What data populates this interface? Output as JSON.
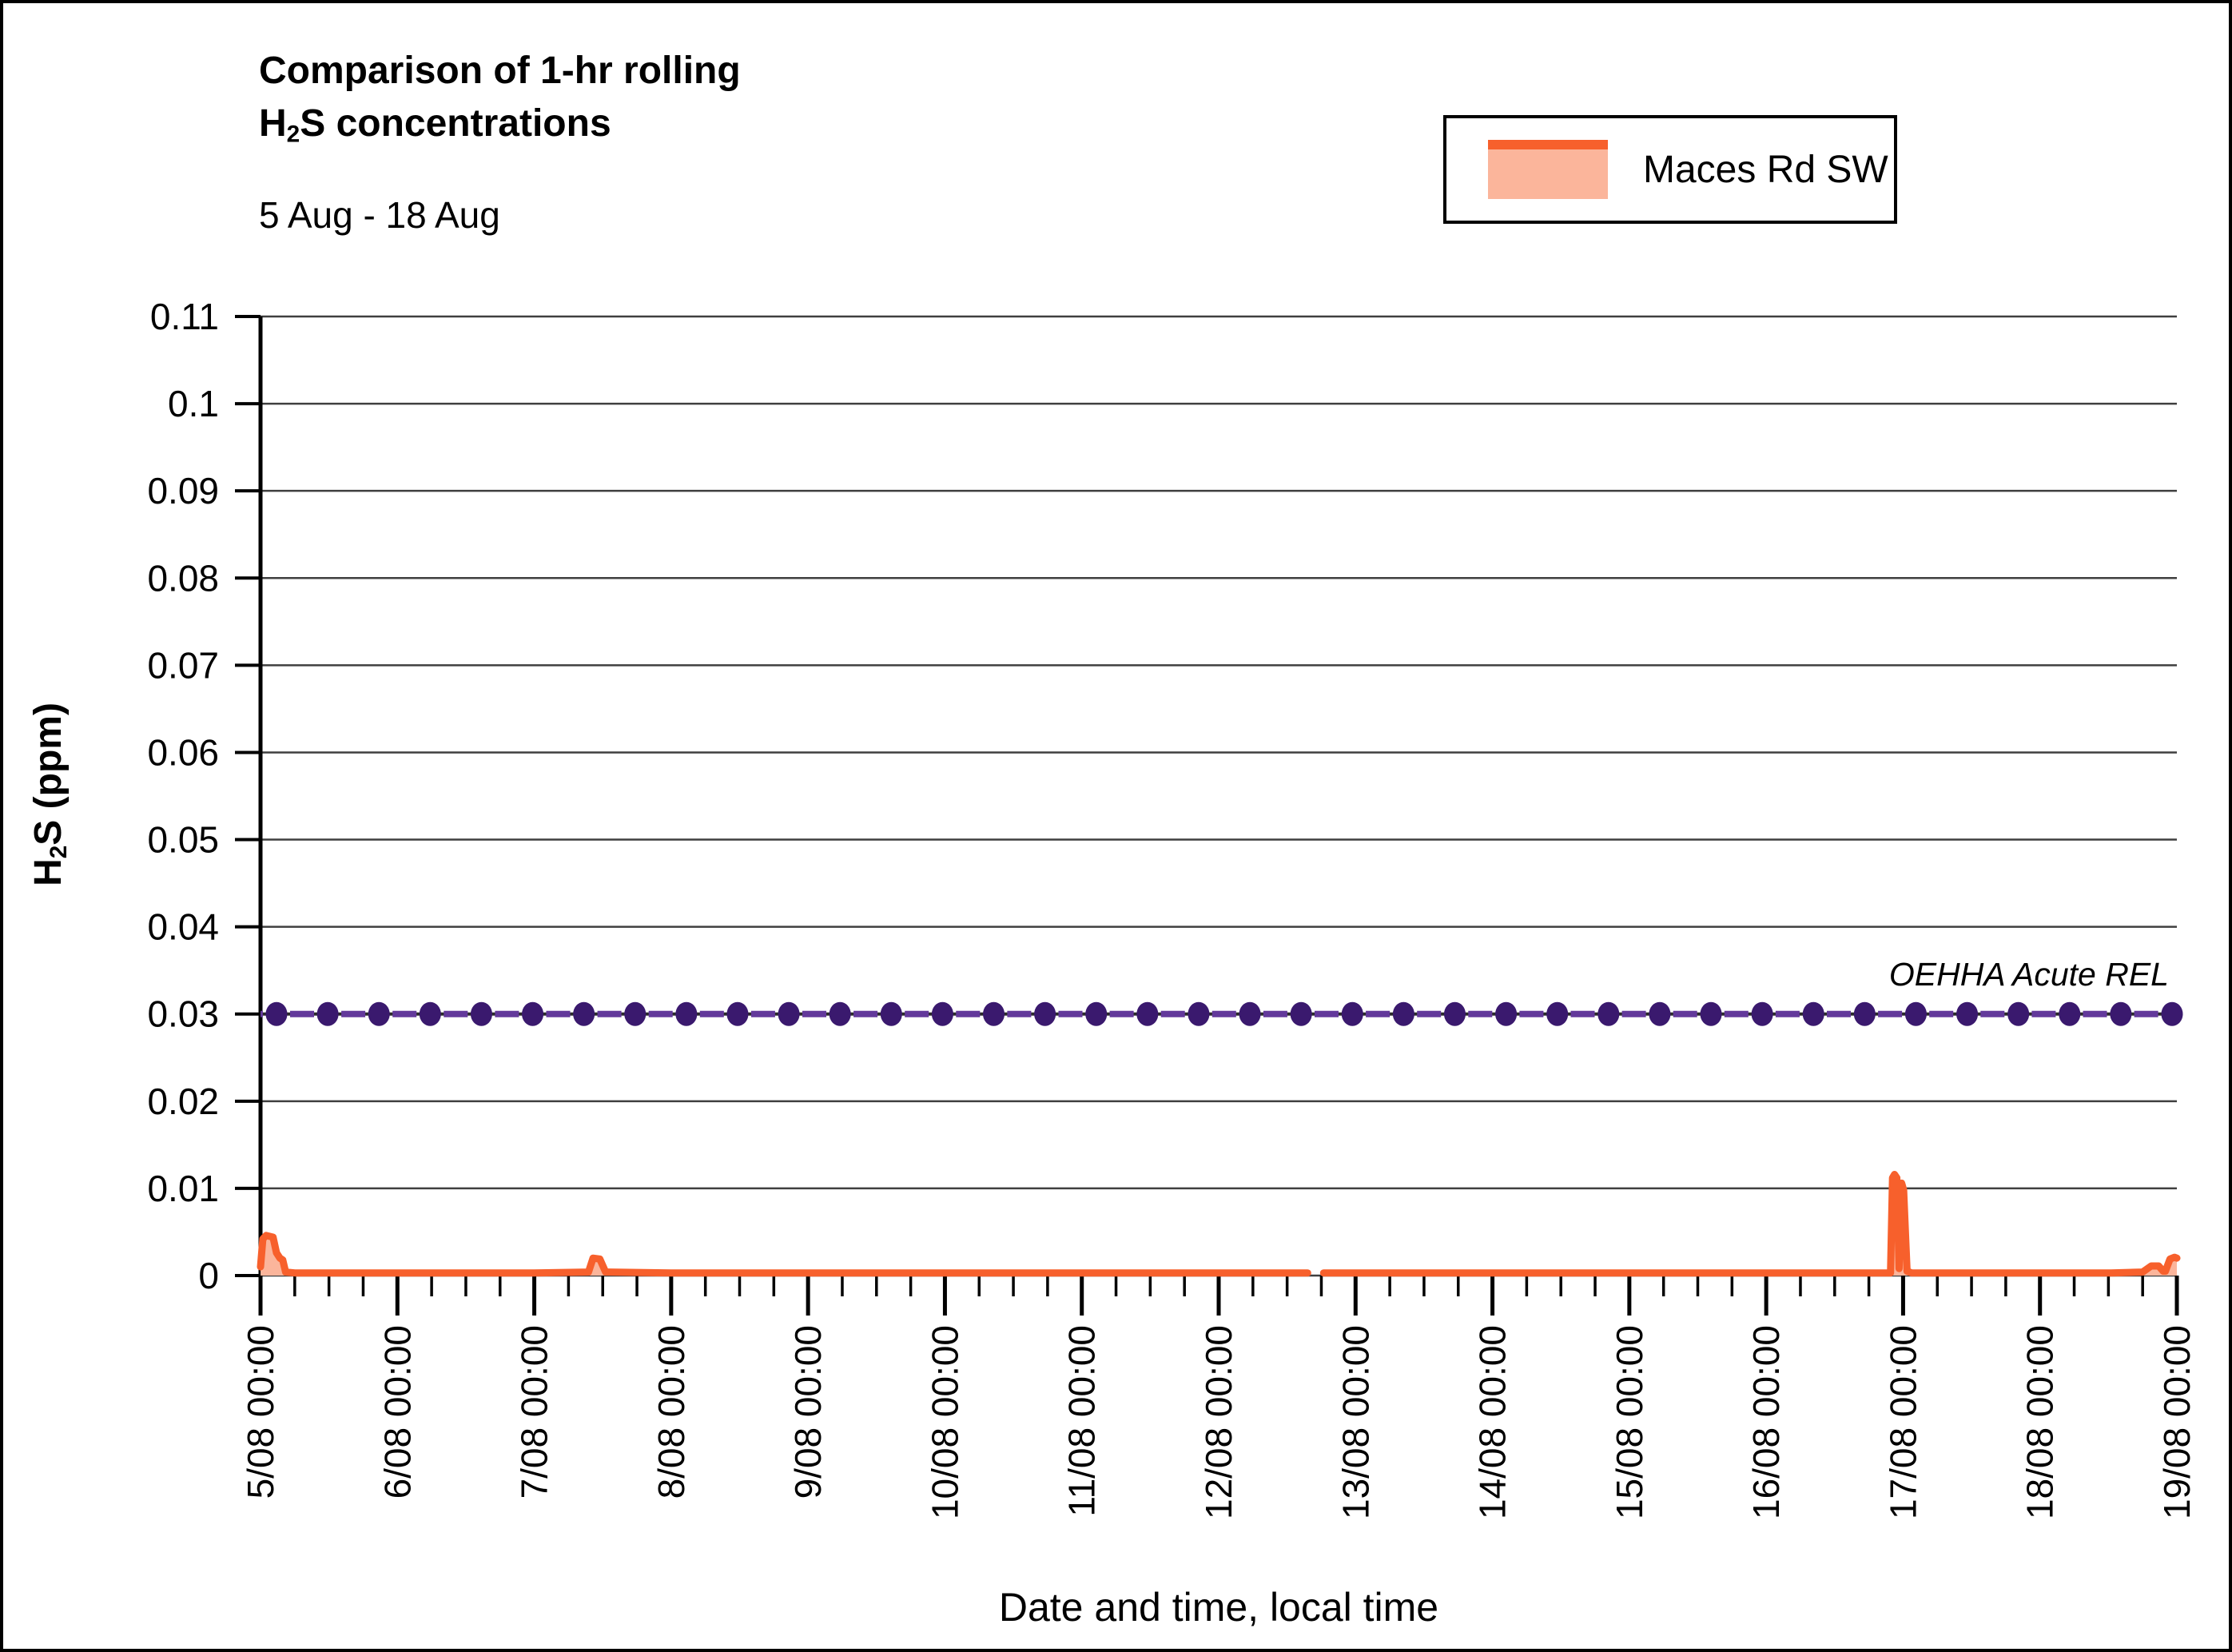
{
  "header": {
    "title_line1": "Comparison of 1-hr rolling",
    "title_line2_base": "H",
    "title_line2_sub": "2",
    "title_line2_rest": "S concentrations",
    "subtitle": "5 Aug - 18 Aug"
  },
  "legend": {
    "series_label": "Maces Rd SW",
    "line_color": "#F7602C",
    "fill_color": "#FBB59B"
  },
  "axes": {
    "y_title_base": "H",
    "y_title_sub": "2",
    "y_title_rest": "S (ppm)",
    "x_title": "Date and time, local time"
  },
  "chart_data": {
    "type": "area",
    "title": "Comparison of 1-hr rolling H2S concentrations, 5 Aug - 18 Aug",
    "xlabel": "Date and time, local time",
    "ylabel": "H2S (ppm)",
    "grid": true,
    "x_unit": "hours since 5/08 00:00",
    "x_range_hours": [
      0,
      336
    ],
    "minor_tick_step_hours": 6,
    "x_tick_hours": [
      0,
      24,
      48,
      72,
      96,
      120,
      144,
      168,
      192,
      216,
      240,
      264,
      288,
      312,
      336
    ],
    "x_tick_labels": [
      "5/08 00:00",
      "6/08 00:00",
      "7/08 00:00",
      "8/08 00:00",
      "9/08 00:00",
      "10/08 00:00",
      "11/08 00:00",
      "12/08 00:00",
      "13/08 00:00",
      "14/08 00:00",
      "15/08 00:00",
      "16/08 00:00",
      "17/08 00:00",
      "18/08 00:00",
      "19/08 00:00"
    ],
    "ylim": [
      0,
      0.11
    ],
    "y_tick_values": [
      0,
      0.01,
      0.02,
      0.03,
      0.04,
      0.05,
      0.06,
      0.07,
      0.08,
      0.09,
      0.1,
      0.11
    ],
    "y_tick_labels": [
      "0",
      "0.01",
      "0.02",
      "0.03",
      "0.04",
      "0.05",
      "0.06",
      "0.07",
      "0.08",
      "0.09",
      "0.1",
      "0.11"
    ],
    "gridline_color": "#3F3F3F",
    "axis_color": "#000000",
    "ref_line": {
      "label": "OEHHA Acute REL",
      "value": 0.03,
      "base_color": "#2B2B2B",
      "dash_color": "#63399B",
      "dot_color": "#3A196E",
      "marker_count": 38
    },
    "series": [
      {
        "name": "Maces Rd SW",
        "color": "#F7602C",
        "fill": "#FBB59B",
        "points": [
          [
            0,
            0.001
          ],
          [
            0.4,
            0.0042
          ],
          [
            1.0,
            0.0046
          ],
          [
            2.2,
            0.0044
          ],
          [
            2.8,
            0.0026
          ],
          [
            3.4,
            0.002
          ],
          [
            3.9,
            0.0018
          ],
          [
            4.4,
            0.0004
          ],
          [
            6,
            0.0003
          ],
          [
            24,
            0.0003
          ],
          [
            48,
            0.0003
          ],
          [
            57.5,
            0.0004
          ],
          [
            58.3,
            0.002
          ],
          [
            59.5,
            0.0019
          ],
          [
            60.5,
            0.0004
          ],
          [
            72,
            0.0003
          ],
          [
            96,
            0.0003
          ],
          [
            120,
            0.0003
          ],
          [
            144,
            0.0003
          ],
          [
            168,
            0.0003
          ],
          [
            183.6,
            0.0003
          ],
          null,
          [
            186.4,
            0.0003
          ],
          [
            216,
            0.0003
          ],
          [
            240,
            0.0003
          ],
          [
            264,
            0.0003
          ],
          [
            285.8,
            0.0003
          ],
          [
            286.15,
            0.0112
          ],
          [
            286.5,
            0.0116
          ],
          [
            286.9,
            0.0112
          ],
          [
            287.3,
            0.0008
          ],
          [
            287.75,
            0.0106
          ],
          [
            288.1,
            0.0098
          ],
          [
            288.7,
            0.0005
          ],
          [
            289.5,
            0.0003
          ],
          [
            312,
            0.0003
          ],
          [
            324.5,
            0.0003
          ],
          [
            330,
            0.0004
          ],
          [
            331.5,
            0.0011
          ],
          [
            332.8,
            0.0011
          ],
          [
            333.6,
            0.0005
          ],
          [
            334.0,
            0.0005
          ],
          [
            334.8,
            0.0019
          ],
          [
            335.6,
            0.0021
          ],
          [
            336,
            0.002
          ]
        ]
      }
    ]
  }
}
